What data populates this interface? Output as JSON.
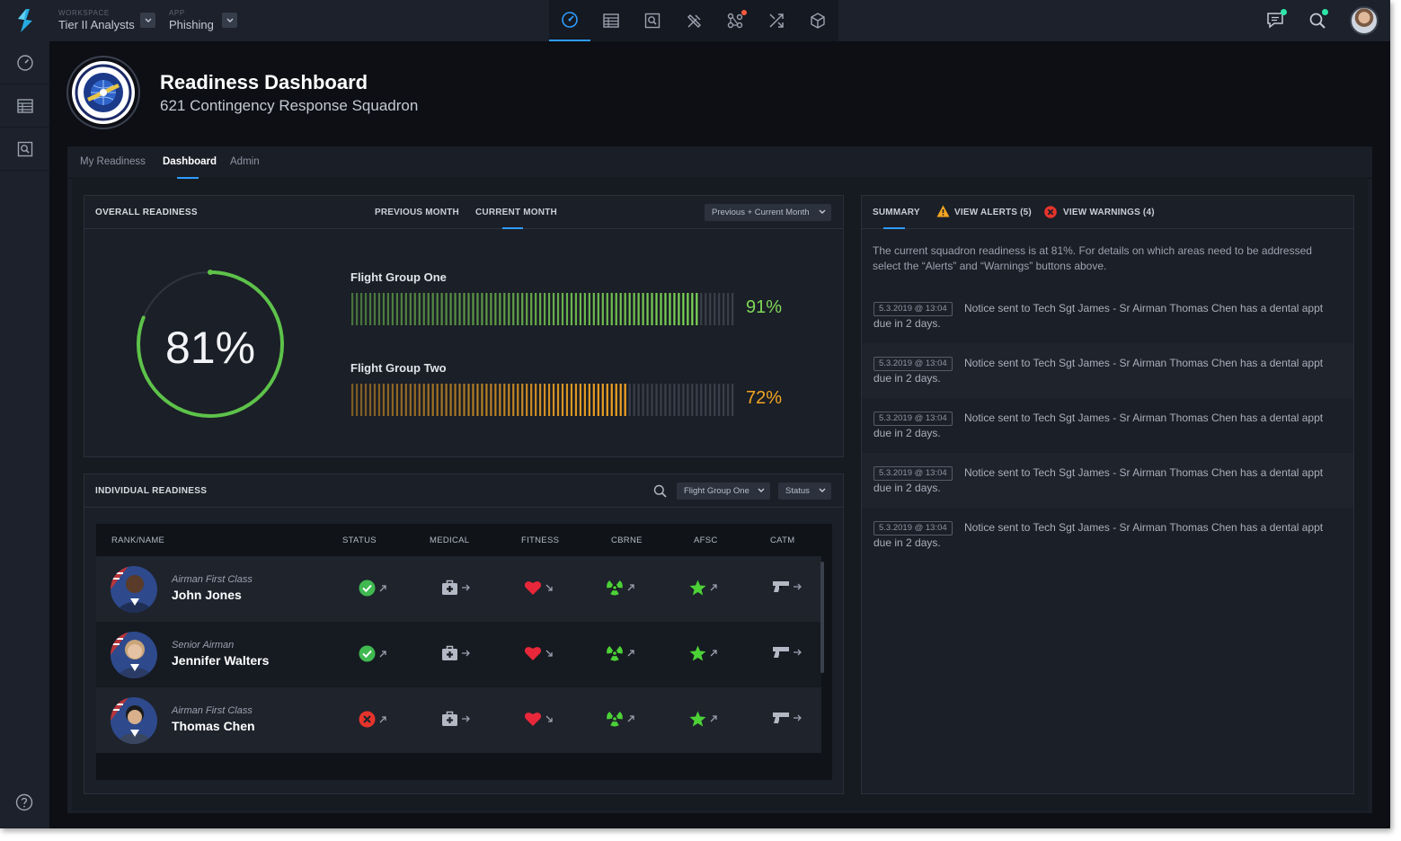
{
  "topbar": {
    "workspace_caption": "WORKSPACE",
    "workspace_value": "Tier II Analysts",
    "app_caption": "APP",
    "app_value": "Phishing",
    "nav_icons": [
      "dashboard-gauge-icon",
      "table-icon",
      "search-document-icon",
      "tools-icon",
      "network-icon",
      "shuffle-icon",
      "cube-icon"
    ]
  },
  "header": {
    "title": "Readiness Dashboard",
    "subtitle": "621 Contingency Response Squadron"
  },
  "tabs": [
    "My Readiness",
    "Dashboard",
    "Admin"
  ],
  "active_tab": "Dashboard",
  "overall": {
    "title": "OVERALL READINESS",
    "tab_previous": "PREVIOUS MONTH",
    "tab_current": "CURRENT MONTH",
    "select_value": "Previous + Current Month",
    "overall_percent": 81,
    "overall_label": "81%",
    "groups": [
      {
        "name": "Flight Group One",
        "percent": 91,
        "label": "91%",
        "color": "#7ed957"
      },
      {
        "name": "Flight Group Two",
        "percent": 72,
        "label": "72%",
        "color": "#f5a623"
      }
    ]
  },
  "individual": {
    "title": "INDIVIDUAL READINESS",
    "group_select": "Flight Group One",
    "status_select": "Status",
    "columns": [
      "RANK/NAME",
      "STATUS",
      "MEDICAL",
      "FITNESS",
      "CBRNE",
      "AFSC",
      "CATM"
    ],
    "rows": [
      {
        "rank": "Airman First Class",
        "name": "John Jones",
        "status": "ok"
      },
      {
        "rank": "Senior Airman",
        "name": "Jennifer Walters",
        "status": "ok"
      },
      {
        "rank": "Airman First Class",
        "name": "Thomas Chen",
        "status": "error"
      }
    ]
  },
  "summary": {
    "tab_summary": "SUMMARY",
    "tab_alerts": "VIEW ALERTS (5)",
    "tab_warnings": "VIEW WARNINGS (4)",
    "text": "The current squadron readiness is at 81%. For details on which areas need to be addressed select the “Alerts” and “Warnings” buttons above.",
    "notices": [
      {
        "stamp": "5.3.2019 @ 13:04",
        "message": "Notice sent to Tech Sgt James - Sr Airman Thomas Chen has a dental appt due in 2 days."
      },
      {
        "stamp": "5.3.2019 @ 13:04",
        "message": "Notice sent to Tech Sgt James - Sr Airman Thomas Chen has a dental appt due in 2 days."
      },
      {
        "stamp": "5.3.2019 @ 13:04",
        "message": "Notice sent to Tech Sgt James - Sr Airman Thomas Chen has a dental appt due in 2 days."
      },
      {
        "stamp": "5.3.2019 @ 13:04",
        "message": "Notice sent to Tech Sgt James - Sr Airman Thomas Chen has a dental appt due in 2 days."
      },
      {
        "stamp": "5.3.2019 @ 13:04",
        "message": "Notice sent to Tech Sgt James - Sr Airman Thomas Chen has a dental appt due in 2 days."
      }
    ]
  },
  "colors": {
    "accent": "#2d9bff",
    "ok": "#3fb950",
    "error": "#e5342c",
    "heart": "#e8283a",
    "green_icon": "#4cd137",
    "warning": "#f5a623"
  }
}
